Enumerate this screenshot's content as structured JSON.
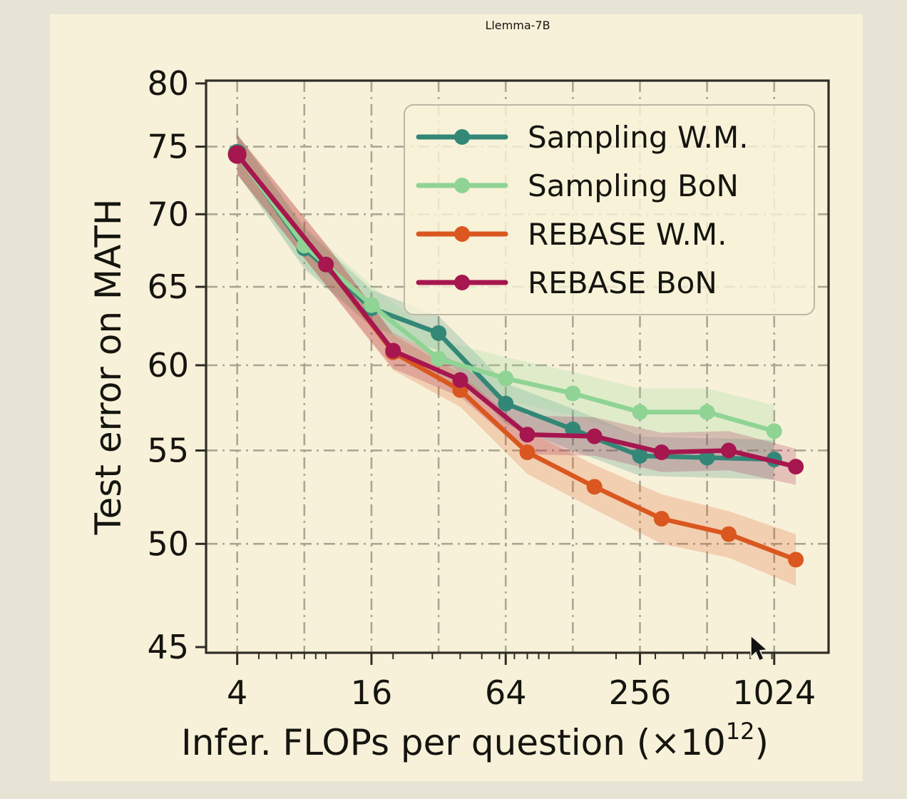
{
  "chart_data": {
    "type": "line",
    "title": "Llemma-7B",
    "xlabel": "Infer. FLOPs per question (×10^12)",
    "ylabel": "Test error on MATH",
    "x_scale": "log",
    "y_scale": "log",
    "xlim": [
      2.9,
      1795
    ],
    "ylim": [
      44.74,
      80.23
    ],
    "x_tick_values": [
      4,
      16,
      64,
      256,
      1024
    ],
    "x_tick_labels": [
      "4",
      "16",
      "64",
      "256",
      "1024"
    ],
    "x_minor_tick_values": [
      5,
      6,
      7,
      8,
      9,
      10,
      20,
      30,
      40,
      50,
      60,
      70,
      80,
      90,
      100,
      200,
      300,
      400,
      500,
      600,
      700,
      800,
      900,
      1000
    ],
    "y_tick_values": [
      80,
      75,
      70,
      65,
      60,
      55,
      50,
      45
    ],
    "y_tick_labels": [
      "80",
      "75",
      "70",
      "65",
      "60",
      "55",
      "50",
      "45"
    ],
    "grid_x_values": [
      4,
      8,
      16,
      32,
      64,
      128,
      256,
      512,
      1024
    ],
    "grid_y_values": [
      75,
      70,
      65,
      60,
      55,
      50
    ],
    "grid_on": true,
    "legend_position": "upper right",
    "series": [
      {
        "name": "Sampling W.M.",
        "color": "#338777",
        "x": [
          4,
          8,
          16,
          32,
          64,
          128,
          256,
          512,
          1024
        ],
        "y": [
          74.5,
          67.6,
          63.6,
          62.0,
          57.7,
          56.2,
          54.7,
          54.6,
          54.5
        ],
        "band": [
          1.5,
          1.4,
          1.2,
          1.1,
          1.2,
          1.2,
          1.1,
          1.1,
          1.1
        ]
      },
      {
        "name": "Sampling BoN",
        "color": "#8fd494",
        "x": [
          4,
          8,
          16,
          32,
          64,
          128,
          256,
          512,
          1024
        ],
        "y": [
          74.4,
          67.8,
          63.8,
          60.4,
          59.2,
          58.3,
          57.2,
          57.2,
          56.1
        ],
        "band": [
          1.5,
          1.4,
          1.3,
          1.2,
          1.3,
          1.3,
          1.4,
          1.4,
          1.5
        ]
      },
      {
        "name": "REBASE W.M.",
        "color": "#da571f",
        "x": [
          4,
          10,
          20,
          40,
          80,
          160,
          320,
          640,
          1280
        ],
        "y": [
          74.4,
          66.5,
          60.8,
          58.5,
          54.9,
          53.0,
          51.3,
          50.5,
          49.2
        ],
        "band": [
          1.5,
          1.4,
          1.1,
          1.0,
          1.2,
          1.2,
          1.3,
          1.2,
          1.3
        ]
      },
      {
        "name": "REBASE BoN",
        "color": "#a6164f",
        "x": [
          4,
          10,
          20,
          40,
          80,
          160,
          320,
          640,
          1280
        ],
        "y": [
          74.4,
          66.5,
          60.9,
          59.1,
          55.9,
          55.8,
          54.9,
          55.0,
          54.1
        ],
        "band": [
          1.5,
          1.4,
          1.1,
          1.0,
          1.1,
          1.1,
          1.1,
          1.1,
          1.0
        ]
      }
    ]
  },
  "labels": {
    "xlabel_main": "Infer. FLOPs per question (×10",
    "xlabel_sup": "12",
    "xlabel_close": ")"
  },
  "colors": {
    "outer_bg": "#e7e4d6",
    "panel_bg": "#f8f1d9",
    "axis": "#2e2d26",
    "grid": "#a39e8d",
    "text": "#15150f",
    "legend_border": "#bcb7a5"
  }
}
